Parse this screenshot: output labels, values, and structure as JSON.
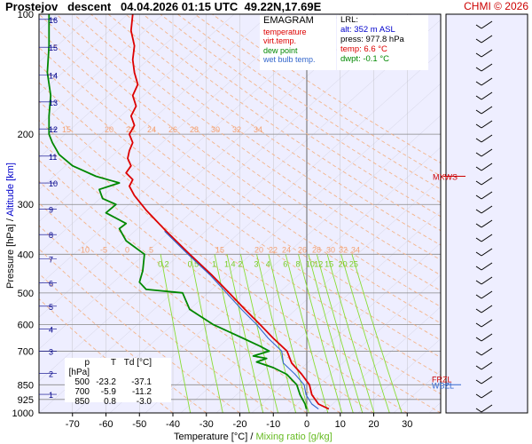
{
  "header": {
    "title": "Prostejov   descent   04.04.2026 01:15 UTC  49.22N,17.69E",
    "credit": "CHMI © 2026"
  },
  "legend": {
    "title": "EMAGRAM",
    "items": [
      {
        "label": "temperature",
        "color": "#dd0000"
      },
      {
        "label": "virt.temp.",
        "color": "#dd0000"
      },
      {
        "label": "dew point",
        "color": "#008800"
      },
      {
        "label": "wet bulb temp.",
        "color": "#3366cc"
      }
    ]
  },
  "lrl": {
    "title": "LRL:",
    "alt": "alt: 352 m ASL",
    "press": "press: 977.8 hPa",
    "temp": "temp: 6.6 °C",
    "dwpt": "dwpt: -0.1 °C"
  },
  "level_table": {
    "headers": [
      "p [hPa]",
      "T",
      "Td [°C]"
    ],
    "rows": [
      [
        "500",
        "-23.2",
        "-37.1"
      ],
      [
        "700",
        "-5.9",
        "-11.2"
      ],
      [
        "850",
        "0.8",
        "-3.0"
      ]
    ]
  },
  "axes": {
    "xlabel": "Temperature [°C]",
    "xlabel_sep": "/",
    "xlabel2": "Mixing ratio [g/kg]",
    "ylabel": "Pressure [hPa]",
    "ylabel_sep": "/",
    "ylabel2": "Altitude [km]"
  },
  "markers": {
    "mxws": "MXWS",
    "wbzl": "WBZL",
    "frzl": "FRZL"
  },
  "colors": {
    "temperature": "#dd0000",
    "dewpoint": "#008800",
    "wetbulb": "#3366cc",
    "isotherm": "#aaaaaa",
    "dry_adiabat": "#f4b48a",
    "mixing_ratio": "#88dd33",
    "altitude": "#000088",
    "background": "#eeeeff"
  },
  "chart_data": {
    "type": "line",
    "xlim": [
      -80,
      40
    ],
    "ylim": [
      1000,
      100
    ],
    "y_scale": "log",
    "x_ticks": [
      -70,
      -60,
      -50,
      -40,
      -30,
      -20,
      -10,
      0,
      10,
      20,
      30
    ],
    "y_ticks": [
      100,
      200,
      300,
      400,
      500,
      600,
      700,
      850,
      925,
      1000
    ],
    "altitude_ticks_km": [
      {
        "label": "1",
        "p": 898
      },
      {
        "label": "2",
        "p": 795
      },
      {
        "label": "3",
        "p": 701
      },
      {
        "label": "4",
        "p": 616
      },
      {
        "label": "5",
        "p": 540
      },
      {
        "label": "6",
        "p": 472
      },
      {
        "label": "7",
        "p": 411
      },
      {
        "label": "8",
        "p": 357
      },
      {
        "label": "9",
        "p": 308
      },
      {
        "label": "10",
        "p": 265
      },
      {
        "label": "11",
        "p": 227
      },
      {
        "label": "12",
        "p": 194
      },
      {
        "label": "13",
        "p": 166
      },
      {
        "label": "14",
        "p": 142
      },
      {
        "label": "15",
        "p": 121
      },
      {
        "label": "16",
        "p": 103
      }
    ],
    "dry_adiabat_labels_upper": [
      "15",
      "20",
      "22",
      "24",
      "26",
      "28",
      "30",
      "32",
      "34"
    ],
    "dry_adiabat_labels_lower": [
      "-10",
      "-5",
      "0",
      "5",
      "15",
      "20",
      "22",
      "24",
      "26",
      "28",
      "30",
      "32",
      "34"
    ],
    "mixing_ratio_labels": [
      "0.2",
      "0.5",
      "1",
      "1.4",
      "2",
      "3",
      "4",
      "6",
      "8",
      "10",
      "12",
      "15",
      "20",
      "25"
    ],
    "series": [
      {
        "name": "temperature",
        "points": [
          [
            6.6,
            977.8
          ],
          [
            3.5,
            950
          ],
          [
            1.5,
            900
          ],
          [
            0.8,
            850
          ],
          [
            -1.5,
            800
          ],
          [
            -4.5,
            750
          ],
          [
            -5.9,
            700
          ],
          [
            -10,
            650
          ],
          [
            -14,
            600
          ],
          [
            -18.5,
            550
          ],
          [
            -23.2,
            500
          ],
          [
            -28.5,
            450
          ],
          [
            -35,
            400
          ],
          [
            -42,
            350
          ],
          [
            -48,
            310
          ],
          [
            -51.5,
            285
          ],
          [
            -53,
            270
          ],
          [
            -52,
            260
          ],
          [
            -54,
            250
          ],
          [
            -52.5,
            240
          ],
          [
            -53.5,
            230
          ],
          [
            -53,
            220
          ],
          [
            -52,
            210
          ],
          [
            -53,
            200
          ],
          [
            -51.5,
            190
          ],
          [
            -52.5,
            180
          ],
          [
            -51,
            170
          ],
          [
            -52,
            160
          ],
          [
            -50.5,
            150
          ],
          [
            -51.5,
            140
          ],
          [
            -52,
            130
          ],
          [
            -51.5,
            120
          ],
          [
            -52.5,
            110
          ],
          [
            -52,
            100
          ]
        ]
      },
      {
        "name": "dew point",
        "points": [
          [
            -0.1,
            977.8
          ],
          [
            -0.5,
            950
          ],
          [
            -2,
            900
          ],
          [
            -3,
            850
          ],
          [
            -6,
            800
          ],
          [
            -10,
            770
          ],
          [
            -15,
            745
          ],
          [
            -12,
            730
          ],
          [
            -16,
            720
          ],
          [
            -11.2,
            700
          ],
          [
            -14,
            680
          ],
          [
            -19,
            650
          ],
          [
            -28,
            600
          ],
          [
            -35,
            550
          ],
          [
            -37.1,
            500
          ],
          [
            -48,
            490
          ],
          [
            -50,
            470
          ],
          [
            -49,
            440
          ],
          [
            -48.5,
            400
          ],
          [
            -54,
            370
          ],
          [
            -56,
            345
          ],
          [
            -54,
            335
          ],
          [
            -60,
            315
          ],
          [
            -57,
            300
          ],
          [
            -61,
            290
          ],
          [
            -62,
            275
          ],
          [
            -56,
            265
          ],
          [
            -63,
            255
          ],
          [
            -70,
            240
          ],
          [
            -74,
            225
          ],
          [
            -76,
            210
          ],
          [
            -77,
            200
          ],
          [
            -77,
            180
          ],
          [
            -76.5,
            160
          ],
          [
            -77.5,
            140
          ],
          [
            -77,
            120
          ],
          [
            -77,
            100
          ]
        ]
      },
      {
        "name": "wet bulb temp.",
        "points": [
          [
            3.5,
            977.8
          ],
          [
            1.5,
            950
          ],
          [
            -0.2,
            900
          ],
          [
            -0.8,
            850
          ],
          [
            -3.5,
            800
          ],
          [
            -7,
            750
          ],
          [
            -7.5,
            700
          ],
          [
            -11.5,
            650
          ],
          [
            -15,
            600
          ],
          [
            -19.5,
            550
          ],
          [
            -24,
            500
          ],
          [
            -29,
            450
          ],
          [
            -35.5,
            400
          ],
          [
            -42.5,
            350
          ]
        ]
      }
    ]
  }
}
